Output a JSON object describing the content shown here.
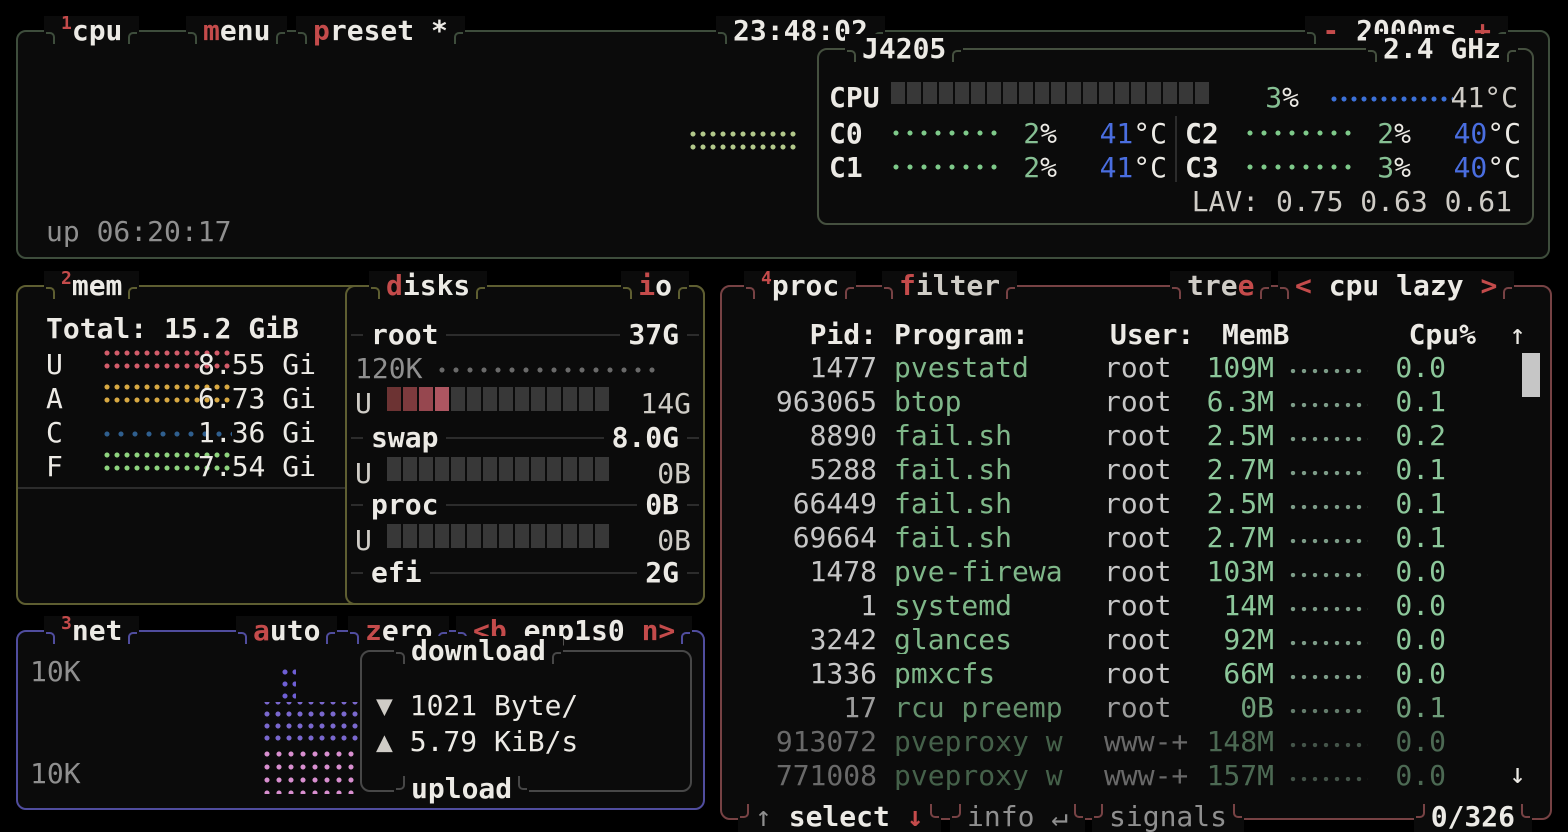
{
  "colors": {
    "accent_red": "#c44b4b",
    "text_white": "#eceae5",
    "text_gray": "#8f8f8f",
    "green": "#86bf93",
    "blue": "#4a6ee0",
    "border_cpu": "#3e4d3c",
    "border_mem": "#5e5e31",
    "border_net": "#504d9e",
    "border_proc": "#774244",
    "cpu_graph_dots": "#b3c98b",
    "core_dots": "#7eca8a",
    "temp_dots": "#3c71d8",
    "mem_used_dots": "#d45c6a",
    "mem_available_dots": "#d9a942",
    "mem_cached_dots": "#2f5f8f",
    "mem_free_dots": "#8ed47e",
    "net_download_dots": "#6f5fd6",
    "net_upload_dots": "#d98fd0",
    "disk_used": [
      "#6c3333",
      "#7d3a3d",
      "#96474f",
      "#ad5661"
    ],
    "meter_empty": "#383838"
  },
  "cpu_box": {
    "num": "1",
    "title": "cpu",
    "menu_key": "m",
    "menu_rest": "enu",
    "preset_key": "p",
    "preset_rest": "reset *",
    "clock": "23:48:02",
    "minus": "-",
    "interval": "2000ms",
    "plus": "+",
    "uptime": "up 06:20:17",
    "panel": {
      "model": "J4205",
      "freq": "2.4 GHz",
      "total_label": "CPU",
      "total_pct": "3",
      "pct_sign": "%",
      "total_temp": "41",
      "deg": "°C",
      "meter": {
        "blocks": 20,
        "filled": 0
      },
      "cores": [
        {
          "label": "C0",
          "pct": "2",
          "temp": "41"
        },
        {
          "label": "C1",
          "pct": "2",
          "temp": "41"
        },
        {
          "label": "C2",
          "pct": "2",
          "temp": "40"
        },
        {
          "label": "C3",
          "pct": "3",
          "temp": "40"
        }
      ],
      "lav": "LAV: 0.75 0.63 0.61"
    }
  },
  "mem_box": {
    "num": "2",
    "title": "mem",
    "total": "Total: 15.2 GiB",
    "rows": [
      {
        "letter": "U",
        "value": "8.55 Gi"
      },
      {
        "letter": "A",
        "value": "6.73 Gi"
      },
      {
        "letter": "C",
        "value": "1.36 Gi"
      },
      {
        "letter": "F",
        "value": "7.54 Gi"
      }
    ]
  },
  "disks_box": {
    "title_key": "d",
    "title_rest": "isks",
    "io_key": "i",
    "io_rest": "o",
    "used_label": "U",
    "root": {
      "name": "root",
      "size": "37G",
      "io": "120K",
      "used": "14G",
      "meter": {
        "blocks": 14,
        "filled": 4
      }
    },
    "swap": {
      "name": "swap",
      "size": "8.0G",
      "used": "0B",
      "meter": {
        "blocks": 14,
        "filled": 0
      }
    },
    "proc": {
      "name": "proc",
      "size": "0B",
      "used": "0B",
      "meter": {
        "blocks": 14,
        "filled": 0
      }
    },
    "efi": {
      "name": "efi",
      "size": "2G"
    }
  },
  "net_box": {
    "num": "3",
    "title": "net",
    "auto_key": "a",
    "auto_rest": "uto",
    "zero_key": "z",
    "zero_rest": "ero",
    "iface_left": "<b",
    "iface": "enp1s0",
    "iface_right": "n>",
    "scale_top": "10K",
    "scale_bottom": "10K",
    "download_label": "download",
    "upload_label": "upload",
    "down_icon": "▼",
    "down_value": "1021 Byte/",
    "up_icon": "▲",
    "up_value": "5.79 KiB/s"
  },
  "proc_box": {
    "num": "4",
    "title": "proc",
    "filter_key": "f",
    "filter_rest": "ilter",
    "tree_pre": "tre",
    "tree_key": "e",
    "sort_left": "<",
    "sort_value": "cpu lazy",
    "sort_right": ">",
    "headers": {
      "pid": "Pid:",
      "program": "Program:",
      "user": "User:",
      "mem": "MemB",
      "cpu": "Cpu%"
    },
    "scroll_up": "↑",
    "scroll_down": "↓",
    "rows": [
      {
        "pid": "1477",
        "program": "pvestatd",
        "user": "root",
        "mem": "109M",
        "cpu": "0.0",
        "dim": 0
      },
      {
        "pid": "963065",
        "program": "btop",
        "user": "root",
        "mem": "6.3M",
        "cpu": "0.1",
        "dim": 0
      },
      {
        "pid": "8890",
        "program": "fail.sh",
        "user": "root",
        "mem": "2.5M",
        "cpu": "0.2",
        "dim": 0
      },
      {
        "pid": "5288",
        "program": "fail.sh",
        "user": "root",
        "mem": "2.7M",
        "cpu": "0.1",
        "dim": 0
      },
      {
        "pid": "66449",
        "program": "fail.sh",
        "user": "root",
        "mem": "2.5M",
        "cpu": "0.1",
        "dim": 0
      },
      {
        "pid": "69664",
        "program": "fail.sh",
        "user": "root",
        "mem": "2.7M",
        "cpu": "0.1",
        "dim": 0
      },
      {
        "pid": "1478",
        "program": "pve-firewa",
        "user": "root",
        "mem": "103M",
        "cpu": "0.0",
        "dim": 0
      },
      {
        "pid": "1",
        "program": "systemd",
        "user": "root",
        "mem": "14M",
        "cpu": "0.0",
        "dim": 0
      },
      {
        "pid": "3242",
        "program": "glances",
        "user": "root",
        "mem": "92M",
        "cpu": "0.0",
        "dim": 0
      },
      {
        "pid": "1336",
        "program": "pmxcfs",
        "user": "root",
        "mem": "66M",
        "cpu": "0.0",
        "dim": 0
      },
      {
        "pid": "17",
        "program": "rcu_preemp",
        "user": "root",
        "mem": "0B",
        "cpu": "0.1",
        "dim": 1
      },
      {
        "pid": "913072",
        "program": "pveproxy w",
        "user": "www-+",
        "mem": "148M",
        "cpu": "0.0",
        "dim": 2
      },
      {
        "pid": "771008",
        "program": "pveproxy w",
        "user": "www-+",
        "mem": "157M",
        "cpu": "0.0",
        "dim": 2
      }
    ],
    "footer": {
      "up": "↑",
      "select": "select",
      "down": "↓",
      "info": "info",
      "enter": "↵",
      "signals": "signals",
      "count": "0/326"
    }
  }
}
